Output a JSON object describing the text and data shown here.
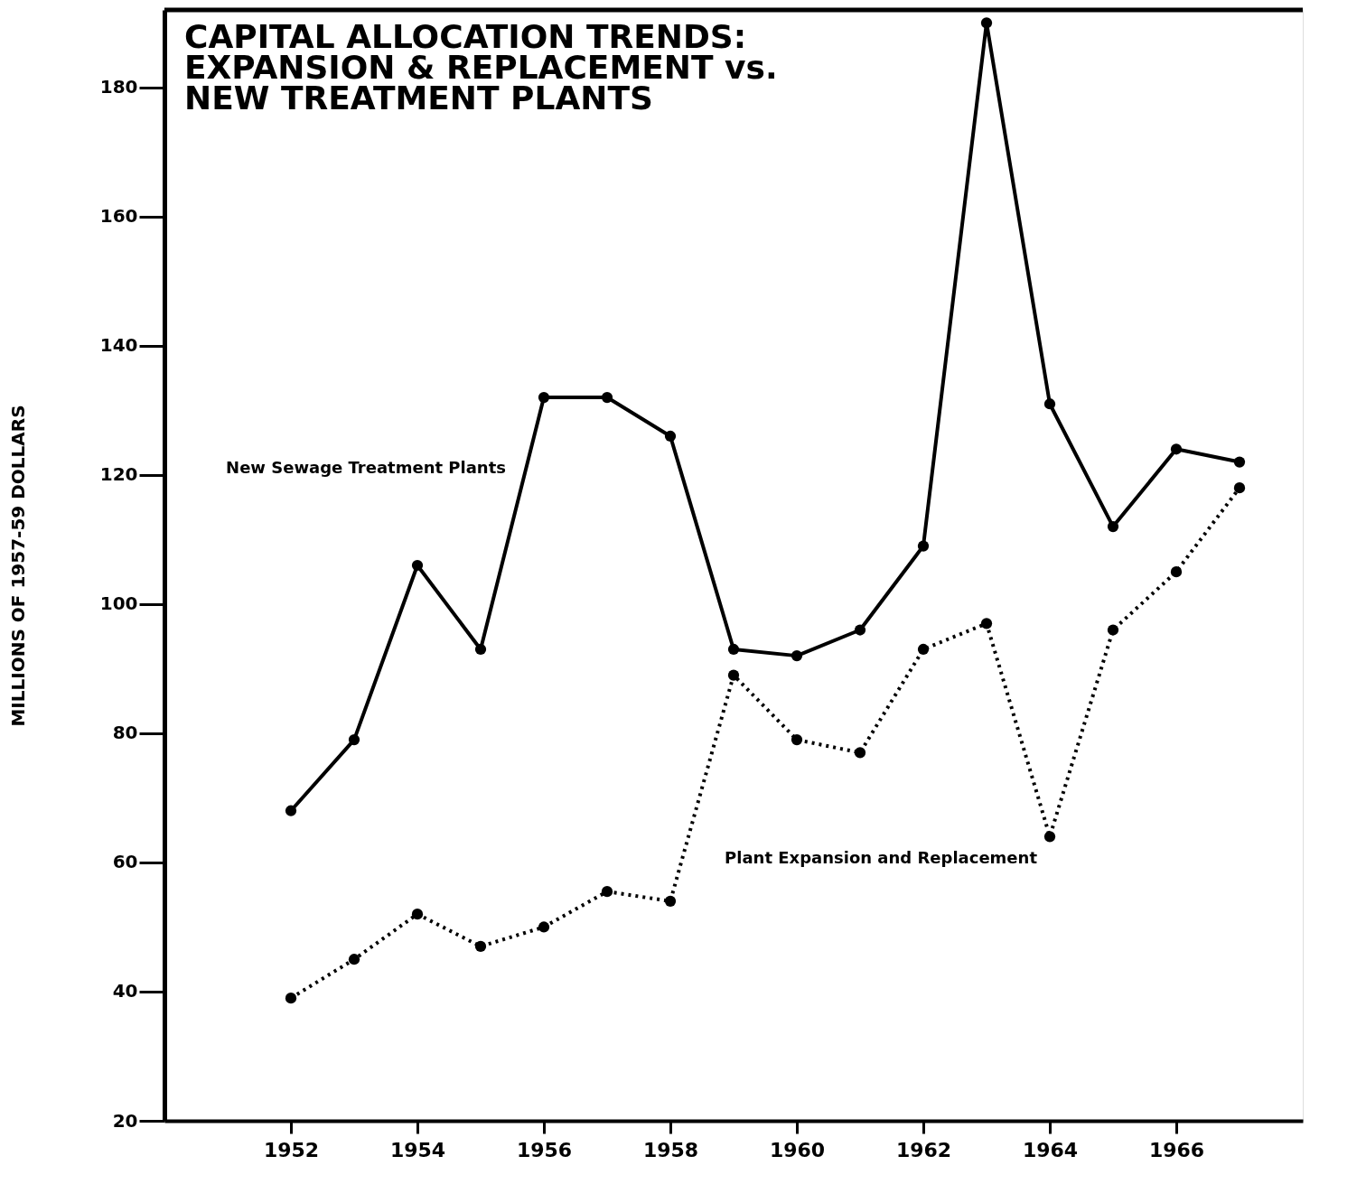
{
  "chart_data": {
    "type": "line",
    "title": "CAPITAL ALLOCATION TRENDS:\nEXPANSION & REPLACEMENT vs.\nNEW TREATMENT PLANTS",
    "ylabel": "MILLIONS OF 1957-59  DOLLARS",
    "x": [
      1952,
      1953,
      1954,
      1955,
      1956,
      1957,
      1958,
      1959,
      1960,
      1961,
      1962,
      1963,
      1964,
      1965,
      1966,
      1967
    ],
    "series": [
      {
        "name": "New Sewage Treatment Plants",
        "color": "#000000",
        "line_style": "solid",
        "values": [
          68,
          79,
          106,
          93,
          132,
          132,
          126,
          93,
          92,
          96,
          109,
          190,
          131,
          112,
          124,
          122
        ]
      },
      {
        "name": "Plant Expansion and Replacement",
        "color": "#000000",
        "line_style": "dotted",
        "values": [
          39,
          45,
          52,
          47,
          50,
          55.5,
          54,
          89,
          79,
          77,
          93,
          97,
          64,
          96,
          105,
          118
        ]
      }
    ],
    "xlim": [
      1950,
      1968
    ],
    "ylim": [
      20,
      192
    ],
    "xticks": [
      1952,
      1954,
      1956,
      1958,
      1960,
      1962,
      1964,
      1966
    ],
    "yticks": [
      20,
      40,
      60,
      80,
      100,
      120,
      140,
      160,
      180
    ],
    "marker": "circle",
    "grid": false,
    "legend": false
  }
}
